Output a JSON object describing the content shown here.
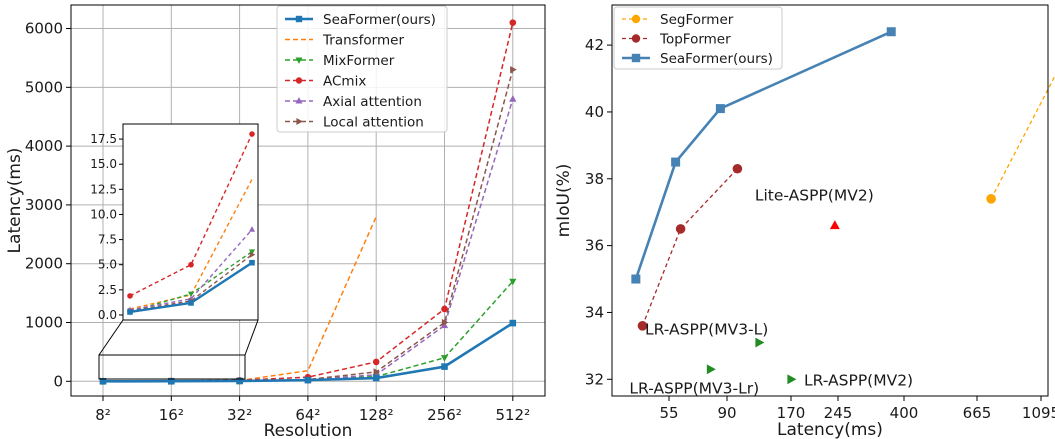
{
  "colors": {
    "seaformer": "#1f77b4",
    "transformer": "#ff7f0e",
    "mixformer": "#2ca02c",
    "acmix": "#d62728",
    "axial": "#9467bd",
    "local": "#8c564b",
    "segformer": "#ffa500",
    "topformer": "#a52a2a",
    "seaformer_right": "#4682b4",
    "lite_aspp": "#ff0000",
    "lr_aspp": "#228b22"
  },
  "chart_data": [
    {
      "type": "line",
      "xlabel": "Resolution",
      "ylabel": "Latency(ms)",
      "categories": [
        "8²",
        "16²",
        "32²",
        "64²",
        "128²",
        "256²",
        "512²"
      ],
      "ylim": [
        -250,
        6400
      ],
      "yticks": [
        "0",
        "1000",
        "2000",
        "3000",
        "4000",
        "5000",
        "6000"
      ],
      "grid": true,
      "legend_position": "top-right",
      "series": [
        {
          "name": "SeaFormer(ours)",
          "marker": "square",
          "dash": "solid",
          "values": [
            0.3,
            1.2,
            5.2,
            20,
            55,
            250,
            990
          ]
        },
        {
          "name": "Transformer",
          "marker": "none",
          "dash": "dashed",
          "values": [
            0.6,
            2,
            13.5,
            180,
            2800,
            null,
            null
          ]
        },
        {
          "name": "MixFormer",
          "marker": "triangle-down",
          "dash": "dashed",
          "values": [
            0.3,
            2.1,
            6.3,
            25,
            80,
            400,
            1700
          ]
        },
        {
          "name": "ACmix",
          "marker": "circle",
          "dash": "dashed",
          "values": [
            1.9,
            5,
            18,
            70,
            330,
            1230,
            6100
          ]
        },
        {
          "name": "Axial attention",
          "marker": "triangle-up",
          "dash": "dashed",
          "values": [
            0.5,
            1.6,
            8.5,
            30,
            110,
            950,
            4800
          ]
        },
        {
          "name": "Local attention",
          "marker": "triangle-right",
          "dash": "dashed",
          "values": [
            0.4,
            1.4,
            6,
            30,
            160,
            1000,
            5300
          ]
        }
      ],
      "inset": {
        "ylim": [
          -0.5,
          19
        ],
        "yticks": [
          "0.0",
          "2.5",
          "5.0",
          "7.5",
          "10.0",
          "12.5",
          "15.0",
          "17.5"
        ]
      }
    },
    {
      "type": "line",
      "xlabel": "Latency(ms)",
      "ylabel": "mIoU(%)",
      "xtick_labels": [
        "55",
        "90",
        "170",
        "245",
        "400",
        "665",
        "1095"
      ],
      "ylim": [
        31.5,
        43.2
      ],
      "yticks": [
        "32",
        "34",
        "36",
        "38",
        "40",
        "42"
      ],
      "grid": false,
      "legend_position": "top-left",
      "series": [
        {
          "name": "SegFormer",
          "marker": "circle",
          "dash": "dashed",
          "points": [
            [
              760,
              37.4
            ],
            [
              1250,
              41.6
            ]
          ]
        },
        {
          "name": "TopFormer",
          "marker": "circle",
          "dash": "dashed",
          "points": [
            [
              39,
              33.6
            ],
            [
              62,
              36.5
            ],
            [
              103,
              38.3
            ]
          ]
        },
        {
          "name": "SeaFormer(ours)",
          "marker": "square",
          "dash": "solid",
          "points": [
            [
              35,
              35.0
            ],
            [
              59,
              38.5
            ],
            [
              86,
              40.1
            ],
            [
              370,
              42.4
            ]
          ]
        }
      ],
      "annotations": [
        {
          "text": "Lite-ASPP(MV2)",
          "marker": "triangle-up",
          "x": 240,
          "y": 36.6
        },
        {
          "text": "LR-ASPP(MV3-L)",
          "marker": "triangle-right",
          "x": 130,
          "y": 33.1
        },
        {
          "text": "LR-ASPP(MV3-Lr)",
          "marker": "triangle-right",
          "x": 80,
          "y": 32.3
        },
        {
          "text": "LR-ASPP(MV2)",
          "marker": "triangle-right",
          "x": 170,
          "y": 32.0
        }
      ]
    }
  ]
}
